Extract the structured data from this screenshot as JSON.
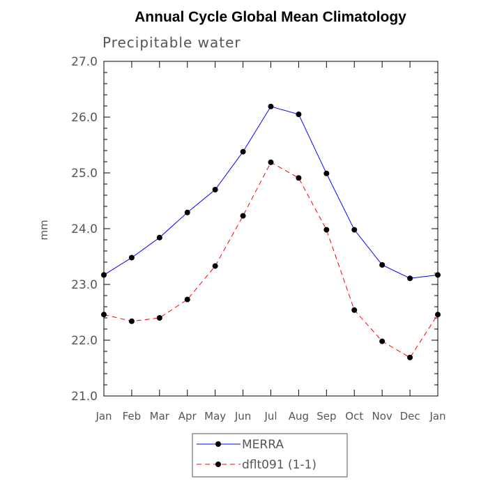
{
  "chart_data": {
    "type": "line",
    "title": "Annual Cycle Global Mean Climatology",
    "subtitle": "Precipitable water",
    "xlabel": "",
    "ylabel": "mm",
    "categories": [
      "Jan",
      "Feb",
      "Mar",
      "Apr",
      "May",
      "Jun",
      "Jul",
      "Aug",
      "Sep",
      "Oct",
      "Nov",
      "Dec",
      "Jan"
    ],
    "ylim": [
      21.0,
      27.0
    ],
    "yticks": [
      "21.0",
      "22.0",
      "23.0",
      "24.0",
      "25.0",
      "26.0",
      "27.0"
    ],
    "grid": false,
    "legend_position": "bottom-center",
    "series": [
      {
        "name": "MERRA",
        "color": "#0000ff",
        "style": "solid",
        "values": [
          23.17,
          23.48,
          23.84,
          24.29,
          24.7,
          25.38,
          26.19,
          26.05,
          24.99,
          23.98,
          23.35,
          23.11,
          23.17
        ]
      },
      {
        "name": "dflt091 (1-1)",
        "color": "#ff0000",
        "style": "dashed",
        "values": [
          22.46,
          22.34,
          22.4,
          22.73,
          23.33,
          24.23,
          25.19,
          24.91,
          23.98,
          22.54,
          21.98,
          21.69,
          22.46
        ]
      }
    ]
  }
}
